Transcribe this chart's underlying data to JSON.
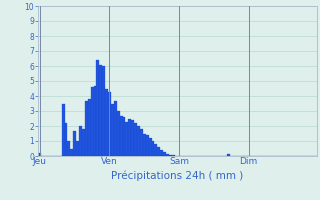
{
  "background_color": "#dff0ec",
  "bar_color": "#2255dd",
  "bar_edge_color": "#1144cc",
  "grid_color": "#b8d8d0",
  "axis_label_color": "#3366cc",
  "tick_color": "#3366cc",
  "spine_color": "#aabbcc",
  "vline_color": "#7788aa",
  "title": "Précipitations 24h ( mm )",
  "ylim": [
    0,
    10
  ],
  "yticks": [
    0,
    1,
    2,
    3,
    4,
    5,
    6,
    7,
    8,
    9,
    10
  ],
  "day_labels": [
    "Jeu",
    "Ven",
    "Sam",
    "Dim"
  ],
  "day_positions": [
    0,
    24,
    48,
    72
  ],
  "n_bars": 96,
  "bar_width": 1.0,
  "values": [
    0.2,
    0.0,
    0.0,
    0.0,
    0.0,
    0.0,
    0.0,
    0.0,
    3.5,
    2.2,
    1.0,
    0.5,
    1.7,
    1.0,
    2.0,
    1.8,
    3.7,
    3.8,
    4.6,
    4.7,
    6.4,
    6.1,
    6.0,
    4.5,
    4.3,
    3.5,
    3.7,
    3.0,
    2.7,
    2.6,
    2.3,
    2.5,
    2.4,
    2.2,
    2.0,
    1.8,
    1.5,
    1.4,
    1.2,
    1.0,
    0.8,
    0.6,
    0.4,
    0.3,
    0.15,
    0.1,
    0.05,
    0.0,
    0.0,
    0.0,
    0.0,
    0.0,
    0.0,
    0.0,
    0.0,
    0.0,
    0.0,
    0.0,
    0.0,
    0.0,
    0.0,
    0.0,
    0.0,
    0.0,
    0.0,
    0.15,
    0.0,
    0.0,
    0.0,
    0.0,
    0.0,
    0.0,
    0.0,
    0.0,
    0.0,
    0.0,
    0.0,
    0.0,
    0.0,
    0.0,
    0.0,
    0.0,
    0.0,
    0.0,
    0.0,
    0.0,
    0.0,
    0.0,
    0.0,
    0.0,
    0.0,
    0.0,
    0.0,
    0.0,
    0.0,
    0.0
  ]
}
